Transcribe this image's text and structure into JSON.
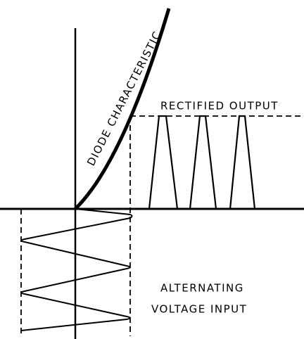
{
  "labels": {
    "curve": "DIODE CHARACTERISTIC",
    "output": "RECTIFIED OUTPUT",
    "input": [
      "ALTERNATING",
      "VOLTAGE INPUT"
    ]
  }
}
